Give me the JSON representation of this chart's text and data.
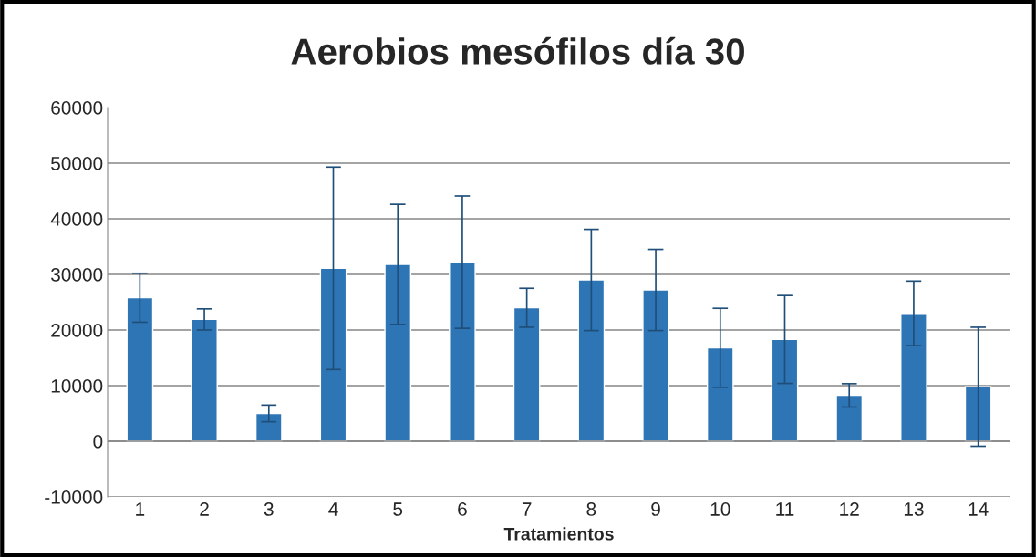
{
  "chart_data": {
    "type": "bar",
    "title": "Aerobios mesófilos día 30",
    "xlabel": "Tratamientos",
    "categories": [
      "1",
      "2",
      "3",
      "4",
      "5",
      "6",
      "7",
      "8",
      "9",
      "10",
      "11",
      "12",
      "13",
      "14"
    ],
    "values": [
      25800,
      21900,
      5000,
      31100,
      31800,
      32200,
      24000,
      29000,
      27200,
      16800,
      18300,
      8250,
      23000,
      9800
    ],
    "errors": [
      4400,
      1900,
      1500,
      18200,
      10800,
      11900,
      3500,
      9100,
      7300,
      7100,
      7900,
      2100,
      5800,
      10700
    ],
    "color": "#2e75b6",
    "ylim": [
      -10000,
      60000
    ],
    "yticks": [
      -10000,
      0,
      10000,
      20000,
      30000,
      40000,
      50000,
      60000
    ],
    "grid": "y",
    "legend": false
  }
}
